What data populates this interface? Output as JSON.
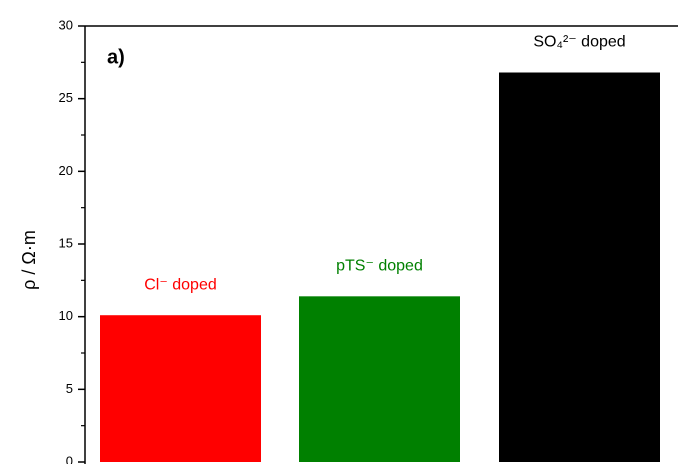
{
  "chart_data": {
    "type": "bar",
    "annotation": "a)",
    "y_label": "ρ / Ω·m",
    "categories": [
      "Cl⁻ doped",
      "pTS⁻ doped",
      "SO₄²⁻ doped"
    ],
    "values": [
      10.1,
      11.4,
      26.8
    ],
    "colors": [
      "#ff0000",
      "#008000",
      "#000000"
    ],
    "label_colors": [
      "#ff0000",
      "#008000",
      "#000000"
    ],
    "ylim": [
      0,
      30
    ],
    "yticks": [
      0,
      5,
      10,
      15,
      20,
      25,
      30
    ],
    "yticks_minor": [
      2.5,
      7.5,
      12.5,
      17.5,
      22.5,
      27.5
    ],
    "grid": false
  }
}
